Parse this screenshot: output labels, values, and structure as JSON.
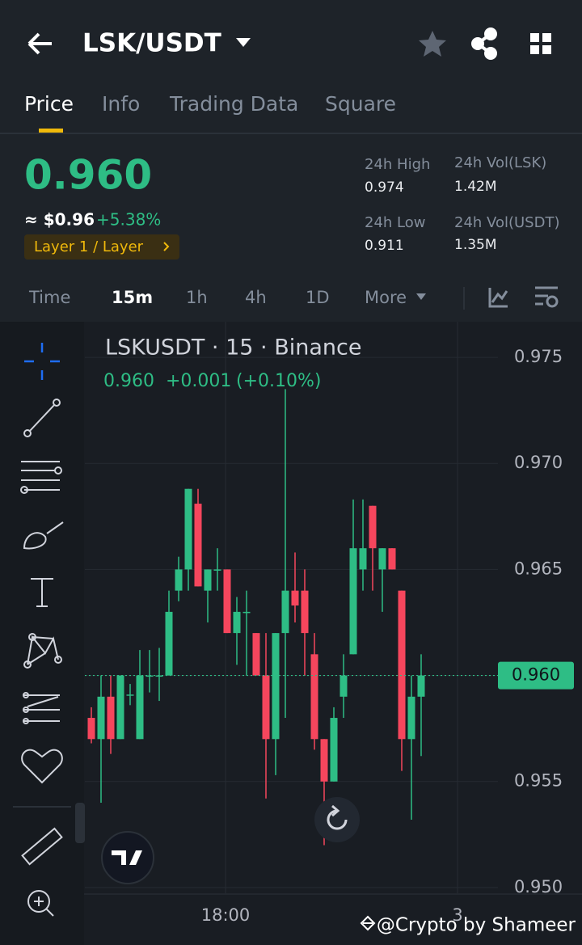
{
  "header": {
    "pair": "LSK/USDT"
  },
  "tabs": [
    "Price",
    "Info",
    "Trading Data",
    "Square"
  ],
  "active_tab": 0,
  "ticker": {
    "price": "0.960",
    "usd": "≈ $0.96",
    "change": "+5.38%",
    "tag": "Layer 1 / Layer",
    "stats": [
      {
        "label": "24h High",
        "value": "0.974"
      },
      {
        "label": "24h Vol(LSK)",
        "value": "1.42M"
      },
      {
        "label": "24h Low",
        "value": "0.911"
      },
      {
        "label": "24h Vol(USDT)",
        "value": "1.35M"
      }
    ]
  },
  "intervals": [
    "Time",
    "15m",
    "1h",
    "4h",
    "1D",
    "More"
  ],
  "active_interval": 1,
  "chart_data": {
    "type": "candlestick",
    "title": "LSKUSDT · 15 · Binance",
    "legend": {
      "close": "0.960",
      "change": "+0.001",
      "percent": "(+0.10%)"
    },
    "up_color": "#2ebd85",
    "down_color": "#f6465d",
    "open": [
      0.958,
      0.957,
      0.959,
      0.957,
      0.9591,
      0.957,
      0.96,
      0.96,
      0.96,
      0.964,
      0.965,
      0.9681,
      0.964,
      0.965,
      0.965,
      0.962,
      0.963,
      0.962,
      0.96,
      0.957,
      0.962,
      0.964,
      0.964,
      0.961,
      0.957,
      0.955,
      0.959,
      0.961,
      0.965,
      0.968,
      0.965,
      0.966,
      0.964,
      0.957,
      0.959
    ],
    "high": [
      0.9585,
      0.96,
      0.96,
      0.96,
      0.9596,
      0.9612,
      0.9612,
      0.9613,
      0.964,
      0.9656,
      0.9688,
      0.9688,
      0.965,
      0.966,
      0.965,
      0.9637,
      0.964,
      0.962,
      0.962,
      0.962,
      0.9735,
      0.9658,
      0.965,
      0.962,
      0.957,
      0.9585,
      0.961,
      0.9683,
      0.9683,
      0.968,
      0.966,
      0.966,
      0.964,
      0.96,
      0.961
    ],
    "low": [
      0.9568,
      0.954,
      0.9563,
      0.957,
      0.9586,
      0.957,
      0.9592,
      0.9588,
      0.96,
      0.9635,
      0.964,
      0.9642,
      0.9625,
      0.964,
      0.962,
      0.9605,
      0.96,
      0.96,
      0.9542,
      0.9553,
      0.958,
      0.9625,
      0.96,
      0.9565,
      0.952,
      0.955,
      0.958,
      0.961,
      0.964,
      0.964,
      0.963,
      0.965,
      0.9555,
      0.9532,
      0.9562
    ],
    "close": [
      0.957,
      0.959,
      0.957,
      0.96,
      0.9591,
      0.96,
      0.96,
      0.96,
      0.963,
      0.965,
      0.9688,
      0.9642,
      0.965,
      0.965,
      0.962,
      0.963,
      0.963,
      0.96,
      0.957,
      0.962,
      0.964,
      0.9633,
      0.962,
      0.957,
      0.955,
      0.958,
      0.96,
      0.966,
      0.966,
      0.966,
      0.966,
      0.965,
      0.957,
      0.959,
      0.96
    ],
    "ylim": [
      0.94973,
      0.97668
    ],
    "yticks": [
      0.975,
      {
        "value": 0.97,
        "label": "0.970"
      },
      0.965,
      {
        "value": 0.96,
        "label": "0.960"
      },
      0.955,
      {
        "value": 0.95,
        "label": "0.950"
      }
    ],
    "last_price": {
      "value": 0.96,
      "label": "0.960"
    },
    "grid": true
  },
  "time_axis": [
    "18:00",
    "3"
  ],
  "watermark": "@Crypto by Shameer"
}
